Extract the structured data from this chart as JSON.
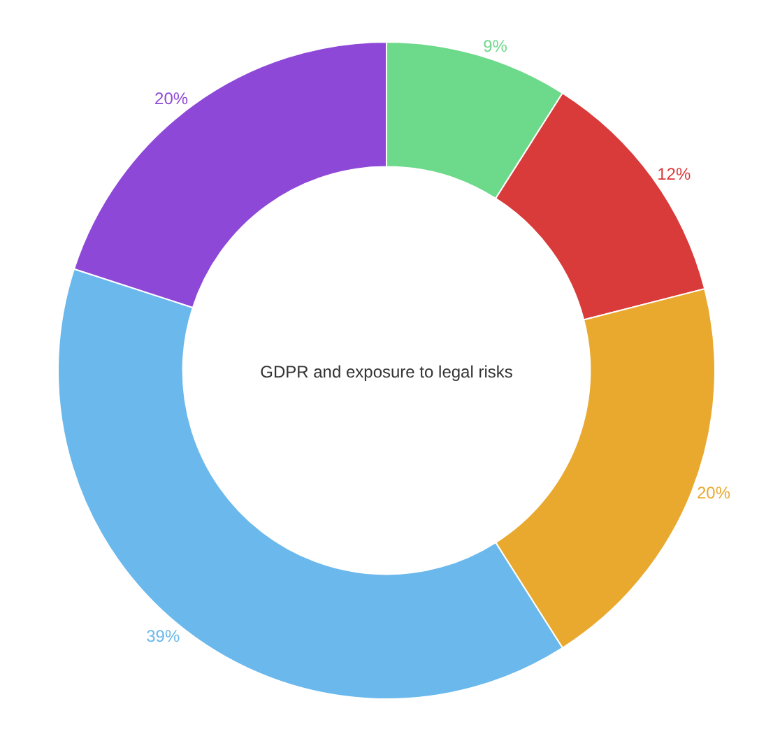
{
  "chart_data": {
    "type": "donut",
    "title": "GDPR and exposure to legal risks",
    "categories": [
      null,
      null,
      null,
      null,
      null
    ],
    "values": [
      9,
      12,
      20,
      39,
      20
    ],
    "colors": [
      "#6dd98a",
      "#d93a3a",
      "#e9a92e",
      "#6ab8ec",
      "#8e48d8"
    ],
    "value_labels": [
      "9%",
      "12%",
      "20%",
      "39%",
      "20%"
    ],
    "legend": false
  }
}
